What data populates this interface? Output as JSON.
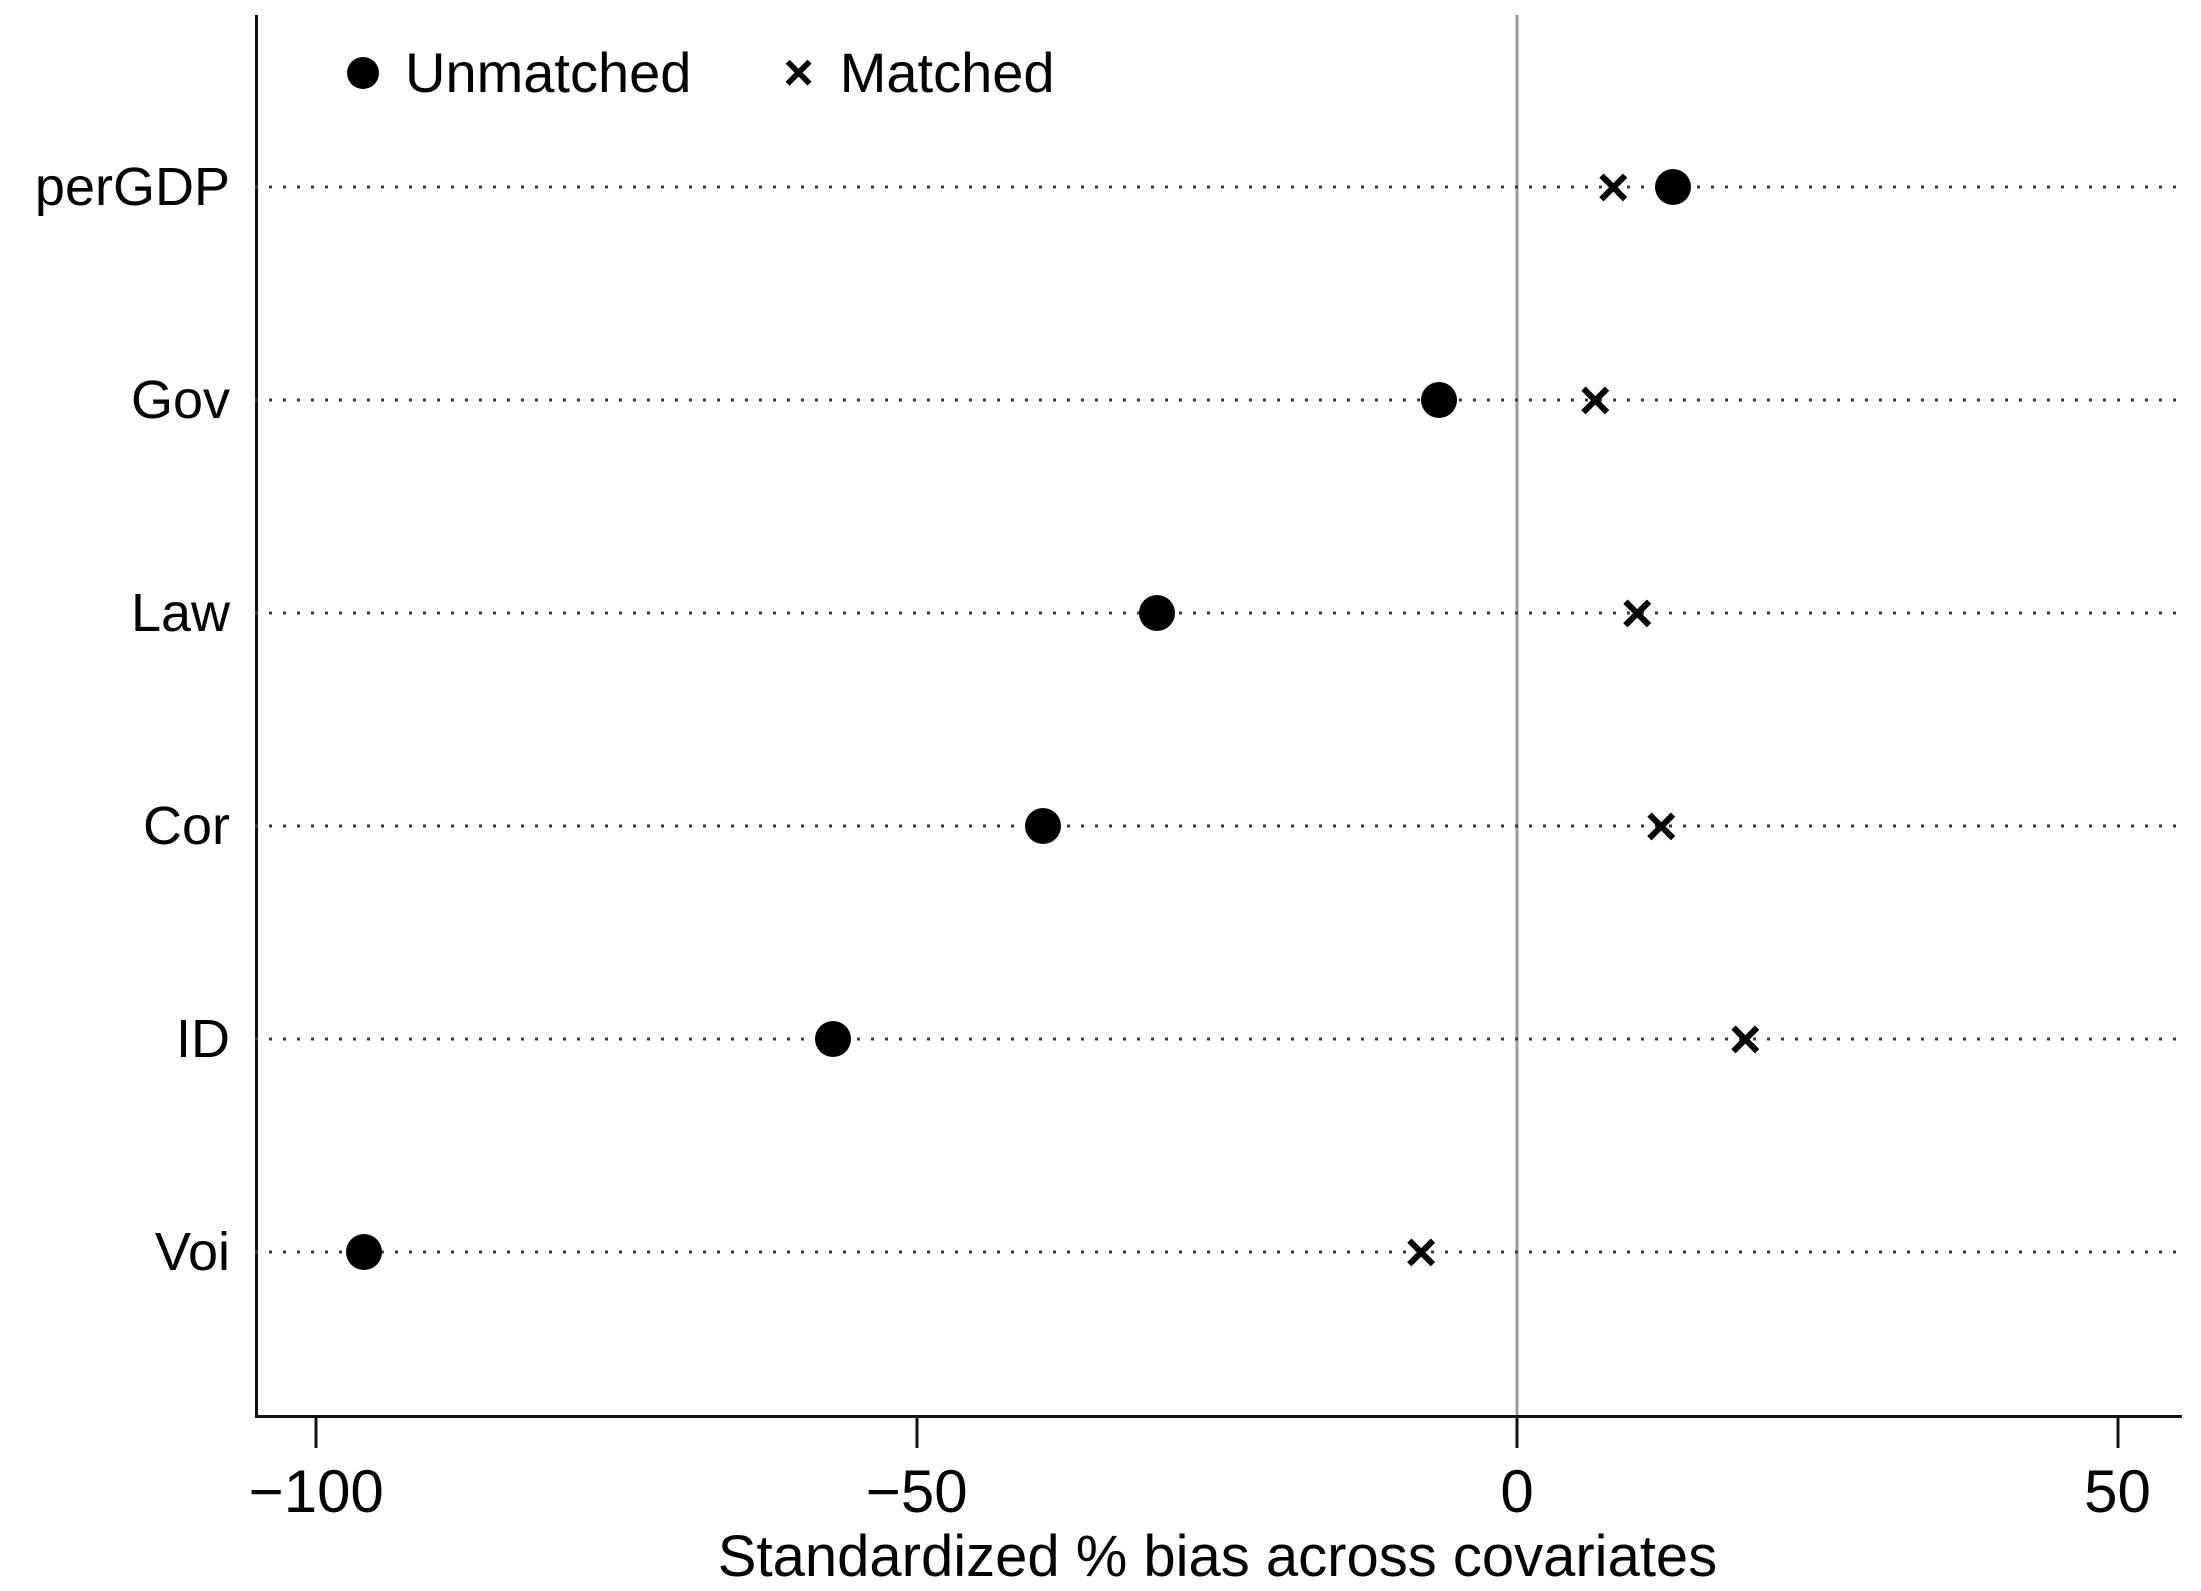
{
  "chart_data": {
    "type": "scatter",
    "title": "",
    "xlabel": "Standardized % bias across covariates",
    "ylabel": "",
    "categories": [
      "perGDP",
      "Gov",
      "Law",
      "Cor",
      "ID",
      "Voi"
    ],
    "series": [
      {
        "name": "Unmatched",
        "marker": "circle",
        "values": [
          13,
          -6.5,
          -30,
          -39.5,
          -57,
          -96
        ]
      },
      {
        "name": "Matched",
        "marker": "x",
        "values": [
          8,
          6.5,
          10,
          12,
          19,
          -8
        ]
      }
    ],
    "x_ticks": [
      {
        "value": -100,
        "label": "−100"
      },
      {
        "value": -50,
        "label": "−50"
      },
      {
        "value": 0,
        "label": "0"
      },
      {
        "value": 50,
        "label": "50"
      }
    ],
    "xlim": [
      -105.1,
      55.2
    ],
    "reference_line_x": 0,
    "grid": "dotted horizontal lines per category",
    "legend_position": "top-left inside plot"
  },
  "legend": {
    "unmatched_label": "Unmatched",
    "matched_label": "Matched"
  },
  "icons": {
    "x_marker_glyph": "×"
  },
  "colors": {
    "marker": "#000000",
    "axis": "#111111",
    "zero_line": "#9a9a9a",
    "grid_dot": "#3a3a3a",
    "background": "#ffffff",
    "text": "#000000"
  }
}
